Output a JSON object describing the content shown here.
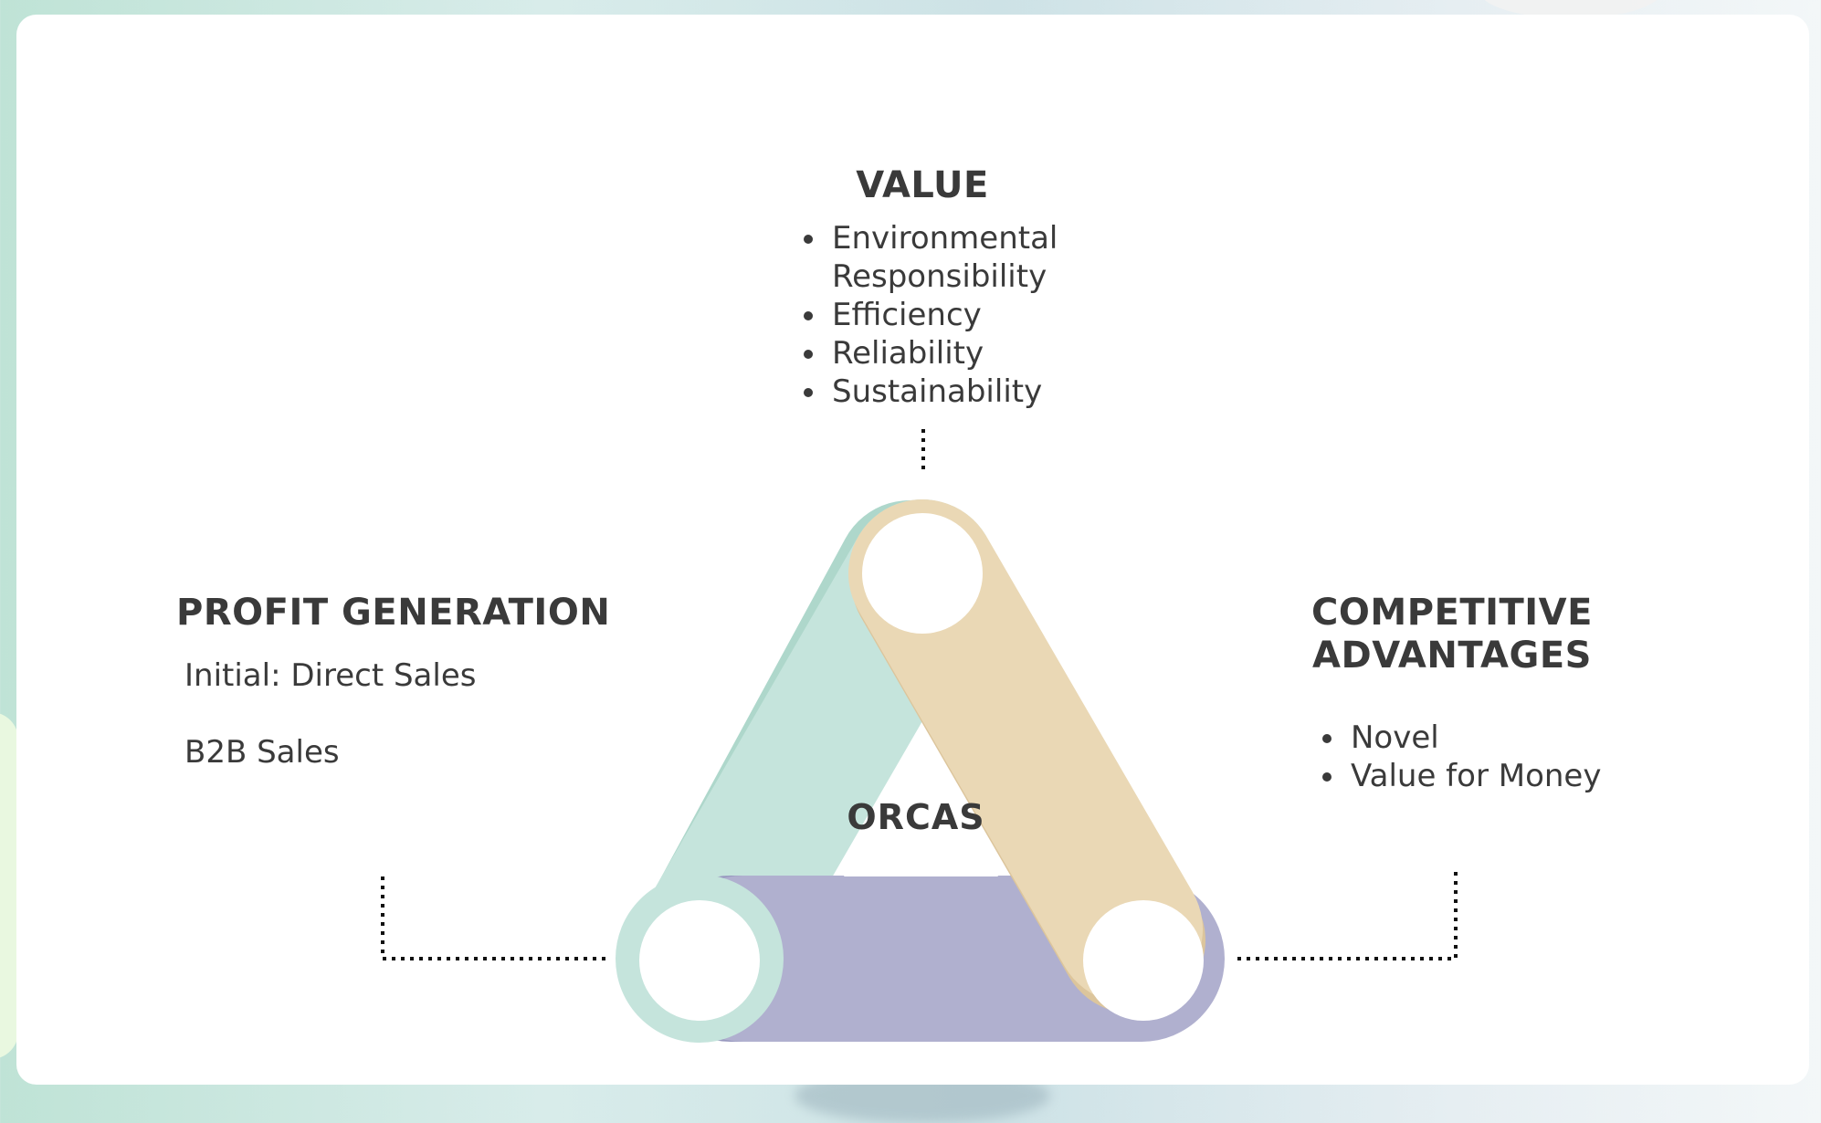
{
  "value": {
    "title": "VALUE",
    "items": [
      "Environmental Responsibility",
      "Efficiency",
      "Reliability",
      "Sustainability"
    ]
  },
  "profit": {
    "title": "PROFIT GENERATION",
    "line1": "Initial: Direct Sales",
    "line2": "B2B Sales"
  },
  "competitive": {
    "title_line1": "COMPETITIVE",
    "title_line2": "ADVANTAGES",
    "items": [
      "Novel",
      "Value for Money"
    ]
  },
  "center_label": "ORCAS",
  "colors": {
    "mint": "#c5e4dc",
    "mint_shadow": "#aed7cb",
    "tan": "#ead8b5",
    "tan_shadow": "#dcc59c",
    "lavender": "#b0b0cf",
    "lavender_shadow": "#9898bf",
    "text": "#3a3a3a"
  }
}
